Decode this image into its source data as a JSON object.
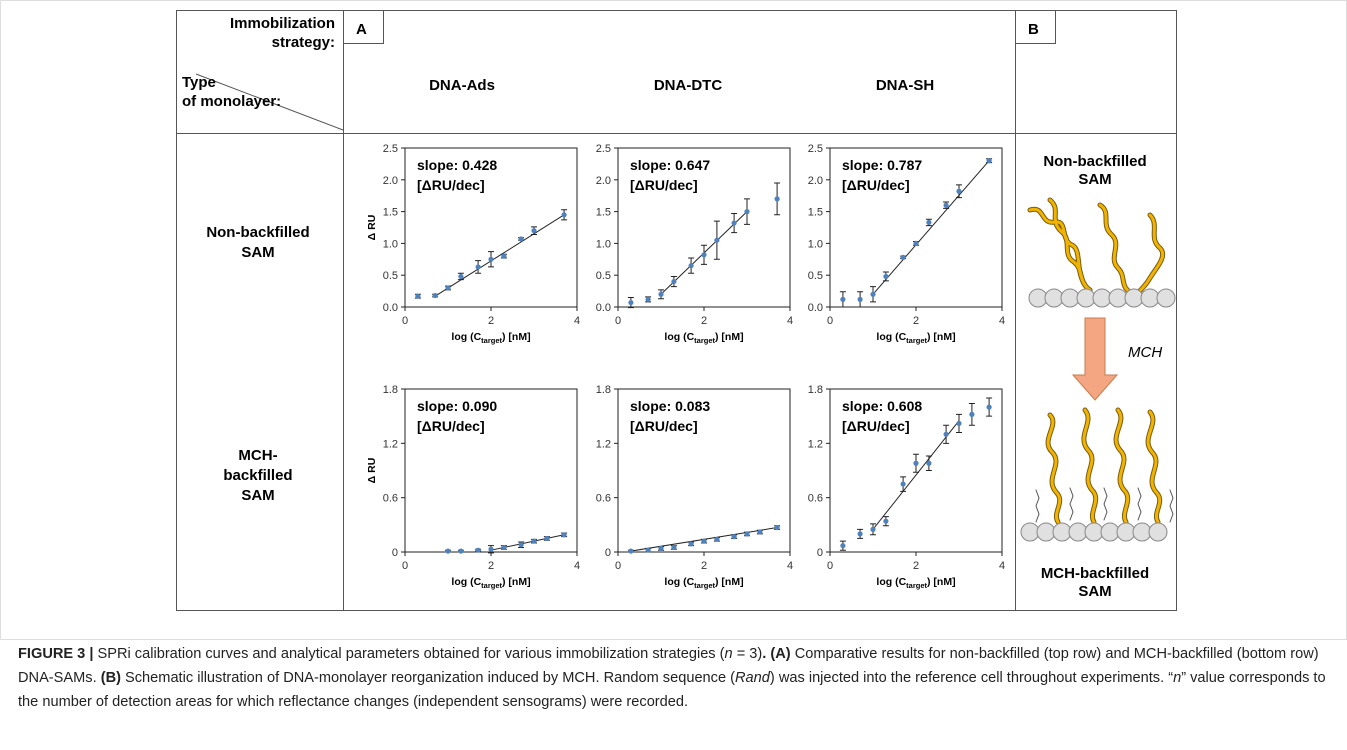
{
  "header": {
    "corner_top": [
      "Immobilization",
      "strategy:"
    ],
    "corner_bottom": [
      "Type",
      "of monolayer:"
    ],
    "panel_a": "A",
    "panel_b": "B",
    "columns": [
      "DNA-Ads",
      "DNA-DTC",
      "DNA-SH"
    ]
  },
  "rows": [
    [
      "Non-backfilled",
      "SAM"
    ],
    [
      "MCH-",
      "backfilled",
      "SAM"
    ]
  ],
  "chart_data": [
    {
      "type": "scatter",
      "color": "#4f81bd",
      "x": [
        0.3,
        0.7,
        1.0,
        1.3,
        1.7,
        2.0,
        2.3,
        2.7,
        3.0,
        3.7
      ],
      "values": [
        0.17,
        0.18,
        0.3,
        0.48,
        0.63,
        0.75,
        0.8,
        1.07,
        1.2,
        1.45
      ],
      "errors": [
        0.03,
        0.02,
        0.03,
        0.05,
        0.1,
        0.12,
        0.03,
        0.02,
        0.06,
        0.08
      ],
      "fit": {
        "x": [
          0.7,
          3.7
        ],
        "y": [
          0.17,
          1.45
        ]
      },
      "xlim": [
        0,
        4
      ],
      "ylim": [
        0,
        2.5
      ],
      "xticks": [
        0,
        2,
        4
      ],
      "yticks": [
        {
          "value": 0,
          "label": "0.0"
        },
        {
          "value": 0.5,
          "label": "0.5"
        },
        {
          "value": 1,
          "label": "1.0"
        },
        {
          "value": 1.5,
          "label": "1.5"
        },
        {
          "value": 2,
          "label": "2.0"
        },
        {
          "value": 2.5,
          "label": "2.5"
        }
      ],
      "x_label": [
        "log (C",
        "target",
        ") [nM]"
      ],
      "y_label": "Δ RU",
      "annotation": [
        "slope: 0.428",
        "[ΔRU/dec]"
      ]
    },
    {
      "type": "scatter",
      "color": "#4f81bd",
      "x": [
        0.3,
        0.7,
        1.0,
        1.3,
        1.7,
        2.0,
        2.3,
        2.7,
        3.0,
        3.7
      ],
      "values": [
        0.07,
        0.12,
        0.2,
        0.4,
        0.65,
        0.82,
        1.05,
        1.32,
        1.5,
        1.7
      ],
      "errors": [
        0.08,
        0.04,
        0.07,
        0.08,
        0.12,
        0.15,
        0.3,
        0.15,
        0.2,
        0.25
      ],
      "fit": {
        "x": [
          1.0,
          3.0
        ],
        "y": [
          0.2,
          1.5
        ]
      },
      "xlim": [
        0,
        4
      ],
      "ylim": [
        0,
        2.5
      ],
      "xticks": [
        0,
        2,
        4
      ],
      "yticks": [
        {
          "value": 0,
          "label": "0.0"
        },
        {
          "value": 0.5,
          "label": "0.5"
        },
        {
          "value": 1,
          "label": "1.0"
        },
        {
          "value": 1.5,
          "label": "1.5"
        },
        {
          "value": 2,
          "label": "2.0"
        },
        {
          "value": 2.5,
          "label": "2.5"
        }
      ],
      "x_label": [
        "log (C",
        "target",
        ") [nM]"
      ],
      "annotation": [
        "slope: 0.647",
        "[ΔRU/dec]"
      ]
    },
    {
      "type": "scatter",
      "color": "#4f81bd",
      "x": [
        0.3,
        0.7,
        1.0,
        1.3,
        1.7,
        2.0,
        2.3,
        2.7,
        3.0,
        3.7
      ],
      "values": [
        0.12,
        0.12,
        0.2,
        0.48,
        0.78,
        1.0,
        1.33,
        1.6,
        1.82,
        2.3
      ],
      "errors": [
        0.12,
        0.12,
        0.12,
        0.07,
        0.02,
        0.03,
        0.05,
        0.05,
        0.1,
        0.03
      ],
      "fit": {
        "x": [
          1.0,
          3.7
        ],
        "y": [
          0.2,
          2.3
        ]
      },
      "xlim": [
        0,
        4
      ],
      "ylim": [
        0,
        2.5
      ],
      "xticks": [
        0,
        2,
        4
      ],
      "yticks": [
        {
          "value": 0,
          "label": "0.0"
        },
        {
          "value": 0.5,
          "label": "0.5"
        },
        {
          "value": 1,
          "label": "1.0"
        },
        {
          "value": 1.5,
          "label": "1.5"
        },
        {
          "value": 2,
          "label": "2.0"
        },
        {
          "value": 2.5,
          "label": "2.5"
        }
      ],
      "x_label": [
        "log (C",
        "target",
        ") [nM]"
      ],
      "annotation": [
        "slope: 0.787",
        "[ΔRU/dec]"
      ]
    },
    {
      "type": "scatter",
      "color": "#4f81bd",
      "x": [
        1.0,
        1.3,
        1.7,
        2.0,
        2.3,
        2.7,
        3.0,
        3.3,
        3.7
      ],
      "values": [
        0.01,
        0.01,
        0.02,
        0.03,
        0.05,
        0.08,
        0.12,
        0.15,
        0.19
      ],
      "errors": [
        0.01,
        0.01,
        0.01,
        0.04,
        0.02,
        0.03,
        0.02,
        0.02,
        0.02
      ],
      "fit": {
        "x": [
          2.0,
          3.7
        ],
        "y": [
          0.02,
          0.19
        ]
      },
      "xlim": [
        0,
        4
      ],
      "ylim": [
        0,
        1.8
      ],
      "xticks": [
        0,
        2,
        4
      ],
      "yticks": [
        0,
        0.6,
        1.2,
        1.8
      ],
      "x_label": [
        "log (C",
        "target",
        ") [nM]"
      ],
      "y_label": "Δ RU",
      "annotation": [
        "slope: 0.090",
        "[ΔRU/dec]"
      ]
    },
    {
      "type": "scatter",
      "color": "#4f81bd",
      "x": [
        0.3,
        0.7,
        1.0,
        1.3,
        1.7,
        2.0,
        2.3,
        2.7,
        3.0,
        3.3,
        3.7
      ],
      "values": [
        0.01,
        0.02,
        0.04,
        0.05,
        0.09,
        0.12,
        0.14,
        0.17,
        0.2,
        0.22,
        0.27
      ],
      "errors": [
        0.01,
        0.02,
        0.02,
        0.02,
        0.02,
        0.02,
        0.02,
        0.02,
        0.02,
        0.02,
        0.02
      ],
      "fit": {
        "x": [
          0.3,
          3.7
        ],
        "y": [
          0.01,
          0.27
        ]
      },
      "xlim": [
        0,
        4
      ],
      "ylim": [
        0,
        1.8
      ],
      "xticks": [
        0,
        2,
        4
      ],
      "yticks": [
        0,
        0.6,
        1.2,
        1.8
      ],
      "x_label": [
        "log (C",
        "target",
        ") [nM]"
      ],
      "annotation": [
        "slope: 0.083",
        "[ΔRU/dec]"
      ]
    },
    {
      "type": "scatter",
      "color": "#4f81bd",
      "x": [
        0.3,
        0.7,
        1.0,
        1.3,
        1.7,
        2.0,
        2.3,
        2.7,
        3.0,
        3.3,
        3.7
      ],
      "values": [
        0.07,
        0.2,
        0.25,
        0.34,
        0.75,
        0.98,
        0.98,
        1.3,
        1.42,
        1.52,
        1.6
      ],
      "errors": [
        0.05,
        0.05,
        0.06,
        0.05,
        0.08,
        0.1,
        0.08,
        0.1,
        0.1,
        0.12,
        0.1
      ],
      "fit": {
        "x": [
          1.0,
          3.0
        ],
        "y": [
          0.25,
          1.45
        ]
      },
      "xlim": [
        0,
        4
      ],
      "ylim": [
        0,
        1.8
      ],
      "xticks": [
        0,
        2,
        4
      ],
      "yticks": [
        0,
        0.6,
        1.2,
        1.8
      ],
      "x_label": [
        "log (C",
        "target",
        ") [nM]"
      ],
      "annotation": [
        "slope: 0.608",
        "[ΔRU/dec]"
      ]
    }
  ],
  "schematic": {
    "top": [
      "Non-backfilled",
      "SAM"
    ],
    "arrow": "MCH",
    "bottom": [
      "MCH-backfilled",
      "SAM"
    ]
  },
  "caption": [
    "FIGURE 3 |",
    " SPRi calibration curves and analytical parameters obtained for various immobilization strategies (",
    "n",
    " = 3)",
    ". (A)",
    " Comparative results for non-backfilled (top row) and MCH-backfilled (bottom row) DNA-SAMs. ",
    "(B)",
    " Schematic illustration of DNA-monolayer reorganization induced by MCH. Random sequence (",
    "Rand",
    ") was injected into the reference cell throughout experiments. “",
    "n",
    "” value corresponds to the number of detection areas for which reflectance changes (independent sensograms) were recorded."
  ]
}
